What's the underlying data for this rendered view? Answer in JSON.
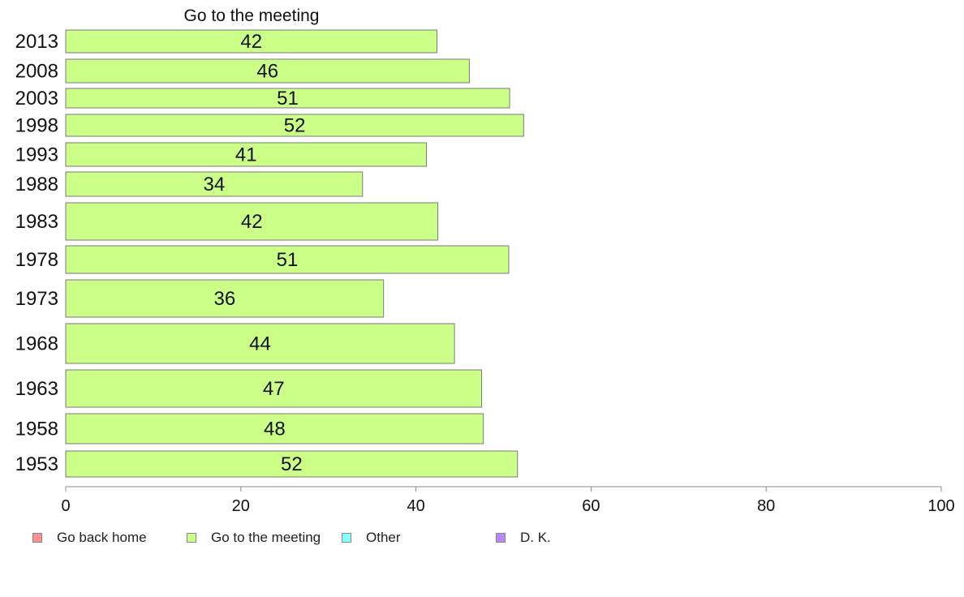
{
  "chart_data": {
    "type": "bar",
    "orientation": "horizontal",
    "title": "Go to the meeting",
    "categories": [
      "2013",
      "2008",
      "2003",
      "1998",
      "1993",
      "1988",
      "1983",
      "1978",
      "1973",
      "1968",
      "1963",
      "1958",
      "1953"
    ],
    "series": [
      {
        "name": "Go to the meeting",
        "color": "#ccff88",
        "values": [
          42,
          46,
          51,
          52,
          41,
          34,
          42,
          51,
          36,
          44,
          47,
          48,
          52
        ],
        "plotted_values": [
          42.4,
          46.1,
          50.7,
          52.3,
          41.2,
          33.9,
          42.5,
          50.6,
          36.3,
          44.4,
          47.5,
          47.7,
          51.6
        ]
      }
    ],
    "xlim": [
      0,
      100
    ],
    "xticks": [
      0,
      20,
      40,
      60,
      80,
      100
    ],
    "grid": false,
    "legend": {
      "placement": "bottom",
      "items": [
        {
          "label": "Go back home",
          "color": "#ff8f8f"
        },
        {
          "label": "Go to the meeting",
          "color": "#ccff88"
        },
        {
          "label": "Other",
          "color": "#88ffff"
        },
        {
          "label": "D. K.",
          "color": "#bb88ff"
        }
      ]
    }
  }
}
